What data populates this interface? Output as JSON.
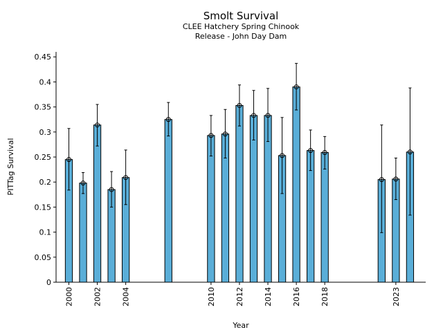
{
  "chart_data": {
    "type": "bar",
    "title": "Smolt Survival",
    "subtitle_lines": [
      "CLEE Hatchery Spring Chinook",
      "Release - John Day Dam"
    ],
    "xlabel": "Year",
    "ylabel": "PITTag Survival",
    "xlim": [
      1999.1,
      2025.1
    ],
    "ylim": [
      0,
      0.46
    ],
    "x_ticks": [
      2000,
      2002,
      2004,
      2010,
      2012,
      2014,
      2016,
      2018,
      2023
    ],
    "x_tick_labels": [
      "2000",
      "2002",
      "2004",
      "2010",
      "2012",
      "2014",
      "2016",
      "2018",
      "2023"
    ],
    "y_ticks": [
      0,
      0.05,
      0.1,
      0.15,
      0.2,
      0.25,
      0.3,
      0.35,
      0.4,
      0.45
    ],
    "y_tick_labels": [
      "0",
      "0.05",
      "0.1",
      "0.15",
      "0.2",
      "0.25",
      "0.3",
      "0.35",
      "0.4",
      "0.45"
    ],
    "bar_color": "#5aaed8",
    "bars": [
      {
        "year": 2000,
        "value": 0.245,
        "lower": 0.184,
        "upper": 0.307
      },
      {
        "year": 2001,
        "value": 0.198,
        "lower": 0.177,
        "upper": 0.219
      },
      {
        "year": 2002,
        "value": 0.314,
        "lower": 0.272,
        "upper": 0.355
      },
      {
        "year": 2003,
        "value": 0.185,
        "lower": 0.15,
        "upper": 0.221
      },
      {
        "year": 2004,
        "value": 0.209,
        "lower": 0.155,
        "upper": 0.264
      },
      {
        "year": 2007,
        "value": 0.325,
        "lower": 0.292,
        "upper": 0.359
      },
      {
        "year": 2010,
        "value": 0.293,
        "lower": 0.252,
        "upper": 0.333
      },
      {
        "year": 2011,
        "value": 0.296,
        "lower": 0.248,
        "upper": 0.345
      },
      {
        "year": 2012,
        "value": 0.353,
        "lower": 0.312,
        "upper": 0.394
      },
      {
        "year": 2013,
        "value": 0.333,
        "lower": 0.284,
        "upper": 0.383
      },
      {
        "year": 2014,
        "value": 0.333,
        "lower": 0.281,
        "upper": 0.387
      },
      {
        "year": 2015,
        "value": 0.253,
        "lower": 0.177,
        "upper": 0.329
      },
      {
        "year": 2016,
        "value": 0.39,
        "lower": 0.344,
        "upper": 0.437
      },
      {
        "year": 2017,
        "value": 0.263,
        "lower": 0.223,
        "upper": 0.304
      },
      {
        "year": 2018,
        "value": 0.259,
        "lower": 0.226,
        "upper": 0.291
      },
      {
        "year": 2022,
        "value": 0.205,
        "lower": 0.099,
        "upper": 0.314
      },
      {
        "year": 2023,
        "value": 0.206,
        "lower": 0.165,
        "upper": 0.248
      },
      {
        "year": 2024,
        "value": 0.26,
        "lower": 0.134,
        "upper": 0.388
      }
    ]
  }
}
